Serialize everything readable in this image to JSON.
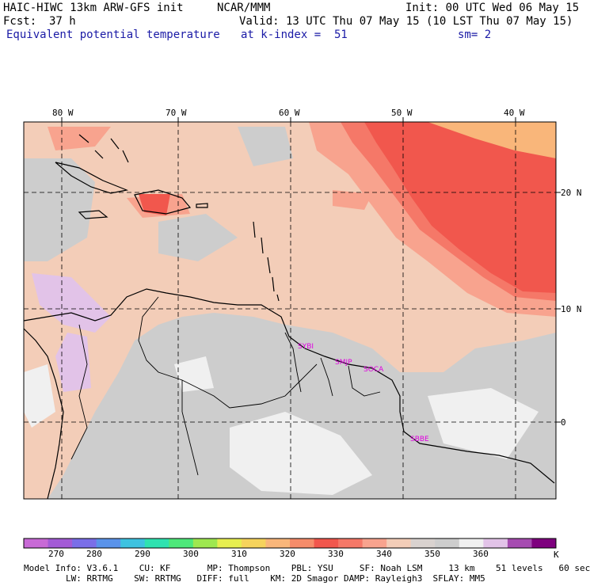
{
  "header": {
    "model_title": "HAIC-HIWC 13km ARW-GFS init",
    "org": "NCAR/MMM",
    "init": "Init: 00 UTC Wed 06 May 15",
    "fcst_label": "Fcst:",
    "fcst_value": "37 h",
    "valid": "Valid: 13 UTC Thu 07 May 15 (10 LST Thu 07 May 15)",
    "field": "Equivalent potential temperature",
    "level": "at k-index =  51",
    "smoothing": "sm= 2"
  },
  "axes": {
    "lon_labels": [
      "80 W",
      "70 W",
      "60 W",
      "50 W",
      "40 W"
    ],
    "lat_labels": [
      "20 N",
      "10 N",
      "0"
    ]
  },
  "stations": [
    "SYBI",
    "SMJP",
    "SOCA",
    "SBBE"
  ],
  "colorbar": {
    "unit": "K",
    "tick_labels": [
      "270",
      "280",
      "290",
      "300",
      "310",
      "320",
      "330",
      "340",
      "350",
      "360"
    ],
    "colors": [
      "#c86ad6",
      "#a35bd6",
      "#7a6ee8",
      "#5a93ea",
      "#3ec2e0",
      "#2fe2b0",
      "#4ee87a",
      "#9ee850",
      "#e7ee50",
      "#f6d35c",
      "#f9b67a",
      "#f68c6a",
      "#f1574d",
      "#f57868",
      "#f8a38e",
      "#f3cdb8",
      "#d9d2cf",
      "#cdcdcd",
      "#f0f0f0",
      "#e2c3e8",
      "#a64cb1",
      "#7e007e"
    ]
  },
  "model_info": {
    "line1": "Model Info: V3.6.1    CU: KF       MP: Thompson    PBL: YSU     SF: Noah LSM     13 km    51 levels   60 sec",
    "line2": "        LW: RRTMG    SW: RRTMG   DIFF: full    KM: 2D Smagor DAMP: Rayleigh3  SFLAY: MM5"
  },
  "colors": {
    "grey": "#cdcdcd",
    "light": "#f0f0f0",
    "tan": "#f3cdb8",
    "salmon": "#f8a38e",
    "red": "#f1574d",
    "orange": "#f9b67a",
    "lavender": "#e2c3e8",
    "station": "#e000e0"
  }
}
